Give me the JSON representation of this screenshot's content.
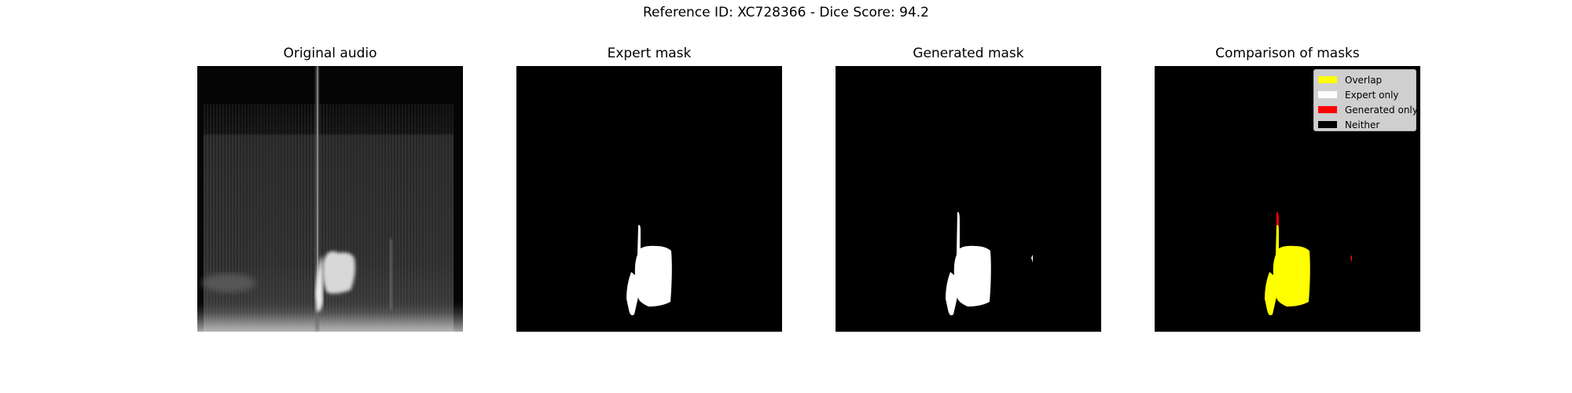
{
  "figure": {
    "title": "Reference ID: XC728366 - Dice Score: 94.2"
  },
  "panels": [
    {
      "title": "Original audio"
    },
    {
      "title": "Expert mask"
    },
    {
      "title": "Generated mask"
    },
    {
      "title": "Comparison of masks"
    }
  ],
  "legend": {
    "items": [
      {
        "label": "Overlap",
        "color": "#ffff00"
      },
      {
        "label": "Expert only",
        "color": "#ffffff"
      },
      {
        "label": "Generated only",
        "color": "#ff0000"
      },
      {
        "label": "Neither",
        "color": "#000000"
      }
    ]
  }
}
